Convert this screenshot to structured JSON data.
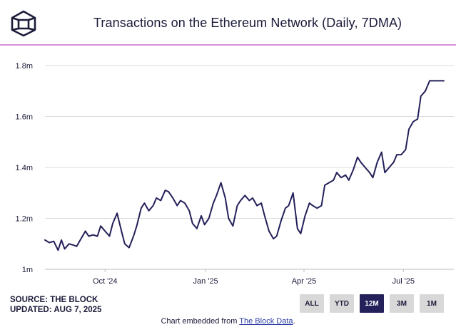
{
  "header": {
    "title": "Transactions on the Ethereum Network (Daily, 7DMA)"
  },
  "footer": {
    "source": "SOURCE: THE BLOCK",
    "updated": "UPDATED: AUG 7, 2025",
    "embed_prefix": "Chart embedded from ",
    "embed_link": "The Block Data",
    "embed_suffix": "."
  },
  "range_buttons": [
    {
      "label": "ALL",
      "active": false
    },
    {
      "label": "YTD",
      "active": false
    },
    {
      "label": "12M",
      "active": true
    },
    {
      "label": "3M",
      "active": false
    },
    {
      "label": "1M",
      "active": false
    }
  ],
  "colors": {
    "line": "#23205a",
    "grid": "#dcdcdc",
    "accent_rule": "#d890d8",
    "active_button": "#23205a"
  },
  "chart_data": {
    "type": "line",
    "title": "Transactions on the Ethereum Network (Daily, 7DMA)",
    "xlabel": "",
    "ylabel": "",
    "ylim": [
      1000000,
      1800000
    ],
    "yticks": [
      1000000,
      1200000,
      1400000,
      1600000,
      1800000
    ],
    "ytick_labels": [
      "1m",
      "1.2m",
      "1.4m",
      "1.6m",
      "1.8m"
    ],
    "xlim": [
      "2024-08-07",
      "2025-08-07"
    ],
    "xticks": [
      "2024-10-01",
      "2025-01-01",
      "2025-04-01",
      "2025-07-01"
    ],
    "xtick_labels": [
      "Oct '24",
      "Jan '25",
      "Apr '25",
      "Jul '25"
    ],
    "grid": "horizontal",
    "legend": "none",
    "series": [
      {
        "x": [
          "2024-08-07",
          "2024-08-11",
          "2024-08-15",
          "2024-08-19",
          "2024-08-22",
          "2024-08-25",
          "2024-08-29",
          "2024-09-02",
          "2024-09-05",
          "2024-09-09",
          "2024-09-13",
          "2024-09-16",
          "2024-09-20",
          "2024-09-24",
          "2024-09-27",
          "2024-10-01",
          "2024-10-05",
          "2024-10-08",
          "2024-10-12",
          "2024-10-16",
          "2024-10-19",
          "2024-10-23",
          "2024-10-27",
          "2024-10-30",
          "2024-11-03",
          "2024-11-06",
          "2024-11-10",
          "2024-11-14",
          "2024-11-17",
          "2024-11-21",
          "2024-11-25",
          "2024-11-28",
          "2024-12-02",
          "2024-12-06",
          "2024-12-09",
          "2024-12-13",
          "2024-12-17",
          "2024-12-20",
          "2024-12-24",
          "2024-12-28",
          "2024-12-31",
          "2025-01-04",
          "2025-01-08",
          "2025-01-11",
          "2025-01-15",
          "2025-01-19",
          "2025-01-22",
          "2025-01-26",
          "2025-01-30",
          "2025-02-02",
          "2025-02-06",
          "2025-02-10",
          "2025-02-13",
          "2025-02-17",
          "2025-02-21",
          "2025-02-24",
          "2025-02-28",
          "2025-03-04",
          "2025-03-07",
          "2025-03-11",
          "2025-03-15",
          "2025-03-18",
          "2025-03-22",
          "2025-03-26",
          "2025-03-29",
          "2025-04-02",
          "2025-04-06",
          "2025-04-09",
          "2025-04-13",
          "2025-04-17",
          "2025-04-20",
          "2025-04-24",
          "2025-04-28",
          "2025-05-01",
          "2025-05-05",
          "2025-05-09",
          "2025-05-12",
          "2025-05-16",
          "2025-05-20",
          "2025-05-23",
          "2025-05-27",
          "2025-05-31",
          "2025-06-03",
          "2025-06-07",
          "2025-06-11",
          "2025-06-14",
          "2025-06-18",
          "2025-06-22",
          "2025-06-25",
          "2025-06-29",
          "2025-07-03",
          "2025-07-06",
          "2025-07-10",
          "2025-07-14",
          "2025-07-17",
          "2025-07-21",
          "2025-07-25",
          "2025-07-28",
          "2025-08-01",
          "2025-08-05",
          "2025-08-07"
        ],
        "values": [
          1115000,
          1105000,
          1110000,
          1075000,
          1115000,
          1080000,
          1100000,
          1095000,
          1090000,
          1120000,
          1150000,
          1130000,
          1135000,
          1130000,
          1170000,
          1150000,
          1130000,
          1180000,
          1220000,
          1150000,
          1100000,
          1085000,
          1130000,
          1170000,
          1240000,
          1260000,
          1230000,
          1250000,
          1280000,
          1270000,
          1310000,
          1305000,
          1280000,
          1250000,
          1270000,
          1260000,
          1230000,
          1180000,
          1160000,
          1210000,
          1175000,
          1200000,
          1260000,
          1290000,
          1340000,
          1280000,
          1200000,
          1170000,
          1250000,
          1270000,
          1290000,
          1270000,
          1280000,
          1250000,
          1260000,
          1210000,
          1150000,
          1120000,
          1130000,
          1190000,
          1240000,
          1250000,
          1300000,
          1160000,
          1140000,
          1210000,
          1260000,
          1250000,
          1240000,
          1250000,
          1330000,
          1340000,
          1350000,
          1380000,
          1360000,
          1370000,
          1350000,
          1390000,
          1440000,
          1420000,
          1400000,
          1380000,
          1360000,
          1420000,
          1460000,
          1380000,
          1400000,
          1420000,
          1450000,
          1450000,
          1470000,
          1550000,
          1580000,
          1590000,
          1680000,
          1700000,
          1740000,
          1740000,
          1740000,
          1740000,
          1740000
        ]
      }
    ]
  }
}
